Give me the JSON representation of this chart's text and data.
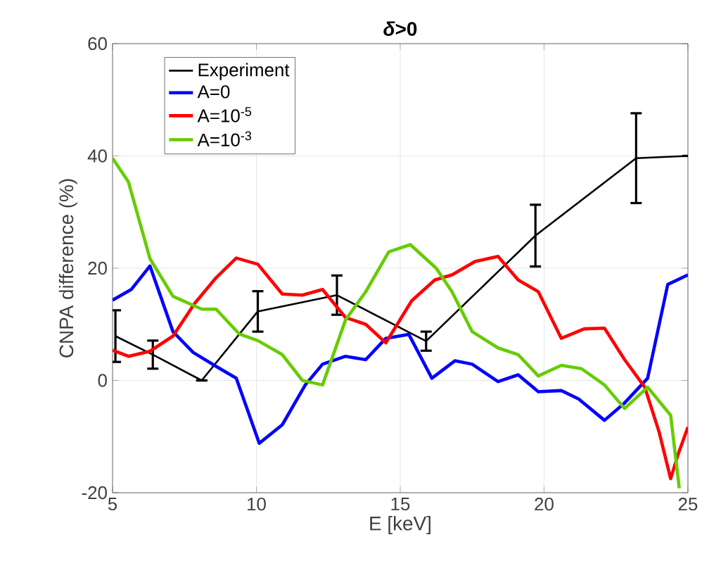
{
  "chart_data": {
    "type": "line",
    "title": "*δ*>0",
    "xlabel": "E [keV]",
    "ylabel": "CNPA difference (%)",
    "xlim": [
      5,
      25
    ],
    "ylim": [
      -20,
      60
    ],
    "xticks": [
      5,
      10,
      15,
      20,
      25
    ],
    "yticks": [
      -20,
      0,
      20,
      40,
      60
    ],
    "grid": true,
    "legend": "top left",
    "marker": "none",
    "line_style": "solid",
    "series": [
      {
        "name": "Experiment",
        "color": "#000000",
        "x": [
          5.1,
          6.4,
          8.1,
          10.05,
          12.8,
          15.9,
          19.7,
          23.2,
          25
        ],
        "values": [
          7.9,
          4.6,
          0,
          12.3,
          15.2,
          7,
          25.8,
          39.6,
          40
        ],
        "errors": [
          4.6,
          2.5,
          null,
          3.6,
          3.5,
          1.7,
          5.5,
          8,
          null
        ]
      },
      {
        "name": "A=0",
        "color": "#0000ff",
        "x": [
          5,
          5.65,
          6.3,
          7.1,
          7.8,
          8.6,
          9.3,
          10.1,
          10.9,
          11.7,
          12.3,
          13.1,
          13.8,
          14.5,
          15.3,
          16.1,
          16.9,
          17.5,
          18.4,
          19.1,
          19.8,
          20.6,
          21.2,
          22.1,
          22.8,
          23.6,
          24.3,
          25
        ],
        "values": [
          14.3,
          16.2,
          20.4,
          8.7,
          5,
          2.5,
          0.4,
          -11.2,
          -7.9,
          -0.8,
          2.9,
          4.3,
          3.7,
          7.5,
          8.2,
          0.4,
          3.5,
          2.9,
          -0.2,
          1,
          -2,
          -1.8,
          -3.3,
          -7.1,
          -4,
          0.4,
          17.1,
          18.8
        ]
      },
      {
        "name": "A=10$^{-5}$",
        "color": "#ff0000",
        "x": [
          5,
          5.55,
          6.3,
          7.1,
          7.85,
          8.6,
          9.3,
          10.05,
          10.9,
          11.6,
          12.3,
          13.1,
          13.8,
          14.5,
          15.4,
          16.2,
          16.8,
          17.6,
          18.4,
          19.1,
          19.8,
          20.6,
          21.4,
          22.1,
          22.8,
          23.5,
          24,
          24.4,
          24.65,
          25
        ],
        "values": [
          5.4,
          4.3,
          5.2,
          7.9,
          13.7,
          18.3,
          21.8,
          20.7,
          15.4,
          15.2,
          16.2,
          11.2,
          10,
          6.7,
          14.2,
          17.9,
          18.8,
          21.2,
          22.1,
          17.9,
          15.8,
          7.5,
          9.2,
          9.3,
          3.7,
          -1.2,
          -9.2,
          -17.5,
          -13.3,
          -8.3
        ]
      },
      {
        "name": "A=10$^{-3}$",
        "color": "#66cc00",
        "x": [
          5,
          5.55,
          6.3,
          7.1,
          8.1,
          8.6,
          9.4,
          10.05,
          10.9,
          11.6,
          12.3,
          13.1,
          13.8,
          14.6,
          15.35,
          16.25,
          16.8,
          17.5,
          18.4,
          19.1,
          19.8,
          20.6,
          21.3,
          22.1,
          22.8,
          23.6,
          24.4,
          24.7
        ],
        "values": [
          39.6,
          35.4,
          21.7,
          15,
          12.7,
          12.7,
          8.3,
          7.1,
          4.6,
          0,
          -0.8,
          10.8,
          15.8,
          22.9,
          24.2,
          20,
          15.8,
          8.7,
          5.8,
          4.6,
          0.8,
          2.7,
          2.1,
          -0.8,
          -5,
          -1.2,
          -6.2,
          -19.2
        ]
      }
    ]
  }
}
